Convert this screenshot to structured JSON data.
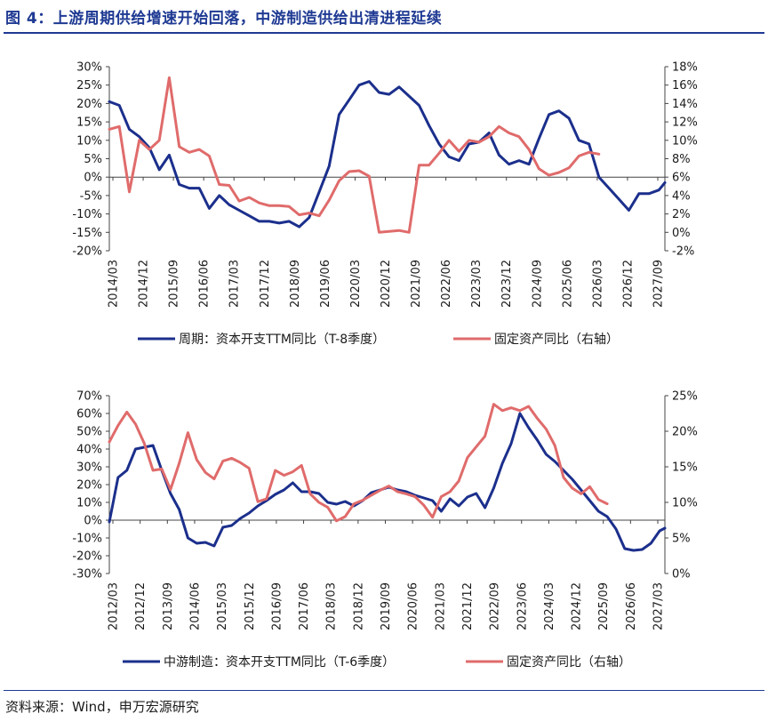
{
  "figure_title": "图 4：上游周期供给增速开始回落，中游制造供给出清进程延续",
  "source": "资料来源：Wind，申万宏源研究",
  "colors": {
    "navy": "#1b2f8c",
    "pink": "#e06b6b",
    "title": "#1f3a93"
  },
  "chart_data": [
    {
      "type": "line",
      "id": "upstream",
      "x_labels": [
        "2014/03",
        "2014/12",
        "2015/09",
        "2016/06",
        "2017/03",
        "2017/12",
        "2018/09",
        "2019/06",
        "2020/03",
        "2020/12",
        "2021/09",
        "2022/06",
        "2023/03",
        "2023/12",
        "2024/09",
        "2025/06",
        "2026/03",
        "2026/12",
        "2027/09"
      ],
      "x_range": [
        2014.0,
        2027.9
      ],
      "left_axis": {
        "ticks": [
          "30%",
          "25%",
          "20%",
          "15%",
          "10%",
          "5%",
          "0%",
          "-5%",
          "-10%",
          "-15%",
          "-20%"
        ],
        "min": -20,
        "max": 30
      },
      "right_axis": {
        "ticks": [
          "18%",
          "16%",
          "14%",
          "12%",
          "10%",
          "8%",
          "6%",
          "4%",
          "2%",
          "0%",
          "-2%"
        ],
        "min": -2,
        "max": 18
      },
      "series": [
        {
          "name": "周期：资本开支TTM同比（T-8季度）",
          "axis": "left",
          "color": "#1b2f8c",
          "points": [
            [
              2014.0,
              20.5
            ],
            [
              2014.25,
              19.5
            ],
            [
              2014.5,
              13
            ],
            [
              2014.75,
              11
            ],
            [
              2015.0,
              8
            ],
            [
              2015.25,
              2
            ],
            [
              2015.5,
              6
            ],
            [
              2015.75,
              -2
            ],
            [
              2016.0,
              -3
            ],
            [
              2016.25,
              -3
            ],
            [
              2016.5,
              -8.5
            ],
            [
              2016.75,
              -5
            ],
            [
              2017.0,
              -7.5
            ],
            [
              2017.25,
              -9
            ],
            [
              2017.5,
              -10.5
            ],
            [
              2017.75,
              -12
            ],
            [
              2018.0,
              -12
            ],
            [
              2018.25,
              -12.5
            ],
            [
              2018.5,
              -12
            ],
            [
              2018.75,
              -13.5
            ],
            [
              2019.0,
              -11
            ],
            [
              2019.25,
              -4
            ],
            [
              2019.5,
              3
            ],
            [
              2019.75,
              17
            ],
            [
              2020.0,
              21
            ],
            [
              2020.25,
              25
            ],
            [
              2020.5,
              26
            ],
            [
              2020.75,
              23
            ],
            [
              2021.0,
              22.5
            ],
            [
              2021.25,
              24.5
            ],
            [
              2021.5,
              22
            ],
            [
              2021.75,
              19.5
            ],
            [
              2022.0,
              14
            ],
            [
              2022.25,
              9
            ],
            [
              2022.5,
              5.5
            ],
            [
              2022.75,
              4.5
            ],
            [
              2023.0,
              9
            ],
            [
              2023.25,
              9.5
            ],
            [
              2023.5,
              12
            ],
            [
              2023.75,
              6
            ],
            [
              2024.0,
              3.5
            ],
            [
              2024.25,
              4.5
            ],
            [
              2024.5,
              3.5
            ],
            [
              2024.75,
              10.5
            ],
            [
              2025.0,
              17
            ],
            [
              2025.25,
              18
            ],
            [
              2025.5,
              16
            ],
            [
              2025.75,
              10
            ],
            [
              2026.0,
              9
            ],
            [
              2026.25,
              0
            ],
            [
              2026.5,
              -3
            ],
            [
              2026.75,
              -6
            ],
            [
              2027.0,
              -9
            ],
            [
              2027.25,
              -4.5
            ],
            [
              2027.5,
              -4.5
            ],
            [
              2027.75,
              -3.5
            ],
            [
              2027.9,
              -1.5
            ]
          ]
        },
        {
          "name": "固定资产同比（右轴）",
          "axis": "right",
          "color": "#e06b6b",
          "points": [
            [
              2014.0,
              11.2
            ],
            [
              2014.25,
              11.5
            ],
            [
              2014.5,
              4.4
            ],
            [
              2014.75,
              10
            ],
            [
              2015.0,
              9
            ],
            [
              2015.25,
              10
            ],
            [
              2015.5,
              16.8
            ],
            [
              2015.75,
              9.3
            ],
            [
              2016.0,
              8.7
            ],
            [
              2016.25,
              9
            ],
            [
              2016.5,
              8.3
            ],
            [
              2016.75,
              5.2
            ],
            [
              2017.0,
              5.1
            ],
            [
              2017.25,
              3.4
            ],
            [
              2017.5,
              3.8
            ],
            [
              2017.75,
              3.2
            ],
            [
              2018.0,
              2.9
            ],
            [
              2018.25,
              2.9
            ],
            [
              2018.5,
              2.8
            ],
            [
              2018.75,
              1.9
            ],
            [
              2019.0,
              2.1
            ],
            [
              2019.25,
              1.8
            ],
            [
              2019.5,
              3.5
            ],
            [
              2019.75,
              5.6
            ],
            [
              2020.0,
              6.6
            ],
            [
              2020.25,
              6.7
            ],
            [
              2020.5,
              6.1
            ],
            [
              2020.75,
              0
            ],
            [
              2021.0,
              0.1
            ],
            [
              2021.25,
              0.2
            ],
            [
              2021.5,
              0
            ],
            [
              2021.75,
              7.3
            ],
            [
              2022.0,
              7.3
            ],
            [
              2022.25,
              8.6
            ],
            [
              2022.5,
              10
            ],
            [
              2022.75,
              8.8
            ],
            [
              2023.0,
              10
            ],
            [
              2023.25,
              9.8
            ],
            [
              2023.5,
              10.4
            ],
            [
              2023.75,
              11.5
            ],
            [
              2024.0,
              10.8
            ],
            [
              2024.25,
              10.4
            ],
            [
              2024.5,
              9
            ],
            [
              2024.75,
              6.9
            ],
            [
              2025.0,
              6.2
            ],
            [
              2025.25,
              6.5
            ],
            [
              2025.5,
              7
            ],
            [
              2025.75,
              8.3
            ],
            [
              2026.0,
              8.7
            ],
            [
              2026.25,
              8.5
            ]
          ]
        }
      ]
    },
    {
      "type": "line",
      "id": "midstream",
      "x_labels": [
        "2012/03",
        "2012/12",
        "2013/09",
        "2014/06",
        "2015/03",
        "2015/12",
        "2016/09",
        "2017/06",
        "2018/03",
        "2018/12",
        "2019/09",
        "2020/06",
        "2021/03",
        "2021/12",
        "2022/09",
        "2023/06",
        "2024/03",
        "2024/12",
        "2025/09",
        "2026/06",
        "2027/03"
      ],
      "x_range": [
        2012.0,
        2027.9
      ],
      "left_axis": {
        "ticks": [
          "70%",
          "60%",
          "50%",
          "40%",
          "30%",
          "20%",
          "10%",
          "0%",
          "-10%",
          "-20%",
          "-30%"
        ],
        "min": -30,
        "max": 70
      },
      "right_axis": {
        "ticks": [
          "25%",
          "20%",
          "15%",
          "10%",
          "5%",
          "0%"
        ],
        "min": 0,
        "max": 25
      },
      "series": [
        {
          "name": "中游制造：资本开支TTM同比（T-6季度）",
          "axis": "left",
          "color": "#1b2f8c",
          "points": [
            [
              2012.0,
              -1
            ],
            [
              2012.25,
              24
            ],
            [
              2012.5,
              28
            ],
            [
              2012.75,
              40
            ],
            [
              2013.0,
              41
            ],
            [
              2013.25,
              42
            ],
            [
              2013.5,
              28
            ],
            [
              2013.75,
              15
            ],
            [
              2014.0,
              6
            ],
            [
              2014.25,
              -10
            ],
            [
              2014.5,
              -13
            ],
            [
              2014.75,
              -12.5
            ],
            [
              2015.0,
              -14.5
            ],
            [
              2015.25,
              -4
            ],
            [
              2015.5,
              -3
            ],
            [
              2015.75,
              1
            ],
            [
              2016.0,
              4
            ],
            [
              2016.25,
              8
            ],
            [
              2016.5,
              11
            ],
            [
              2016.75,
              14.5
            ],
            [
              2017.0,
              17
            ],
            [
              2017.25,
              21
            ],
            [
              2017.5,
              16
            ],
            [
              2017.75,
              16
            ],
            [
              2018.0,
              15
            ],
            [
              2018.25,
              10
            ],
            [
              2018.5,
              9
            ],
            [
              2018.75,
              10.5
            ],
            [
              2019.0,
              8
            ],
            [
              2019.25,
              11
            ],
            [
              2019.5,
              15.5
            ],
            [
              2019.75,
              17
            ],
            [
              2020.0,
              18.5
            ],
            [
              2020.25,
              17
            ],
            [
              2020.5,
              16
            ],
            [
              2020.75,
              14
            ],
            [
              2021.0,
              12.5
            ],
            [
              2021.25,
              11
            ],
            [
              2021.5,
              5
            ],
            [
              2021.75,
              12
            ],
            [
              2022.0,
              8
            ],
            [
              2022.25,
              13
            ],
            [
              2022.5,
              15
            ],
            [
              2022.75,
              7
            ],
            [
              2023.0,
              18
            ],
            [
              2023.25,
              32
            ],
            [
              2023.5,
              43
            ],
            [
              2023.75,
              60
            ],
            [
              2024.0,
              52
            ],
            [
              2024.25,
              45
            ],
            [
              2024.5,
              37
            ],
            [
              2024.75,
              33
            ],
            [
              2025.0,
              28
            ],
            [
              2025.25,
              23
            ],
            [
              2025.5,
              17
            ],
            [
              2025.75,
              11
            ],
            [
              2026.0,
              5
            ],
            [
              2026.25,
              2
            ],
            [
              2026.5,
              -5
            ],
            [
              2026.75,
              -16
            ],
            [
              2027.0,
              -17
            ],
            [
              2027.25,
              -16.5
            ],
            [
              2027.5,
              -13
            ],
            [
              2027.75,
              -6
            ],
            [
              2027.9,
              -4.5
            ]
          ]
        },
        {
          "name": "固定资产同比（右轴）",
          "axis": "right",
          "color": "#e06b6b",
          "points": [
            [
              2012.0,
              18.5
            ],
            [
              2012.25,
              20.8
            ],
            [
              2012.5,
              22.7
            ],
            [
              2012.75,
              21
            ],
            [
              2013.0,
              18.3
            ],
            [
              2013.25,
              14.5
            ],
            [
              2013.5,
              14.7
            ],
            [
              2013.75,
              11.8
            ],
            [
              2014.0,
              15.5
            ],
            [
              2014.25,
              19.8
            ],
            [
              2014.5,
              16
            ],
            [
              2014.75,
              14.2
            ],
            [
              2015.0,
              13.3
            ],
            [
              2015.25,
              15.8
            ],
            [
              2015.5,
              16.2
            ],
            [
              2015.75,
              15.6
            ],
            [
              2016.0,
              14.8
            ],
            [
              2016.25,
              10.1
            ],
            [
              2016.5,
              10.5
            ],
            [
              2016.75,
              14.5
            ],
            [
              2017.0,
              13.8
            ],
            [
              2017.25,
              14.3
            ],
            [
              2017.5,
              15.2
            ],
            [
              2017.75,
              11.2
            ],
            [
              2018.0,
              10
            ],
            [
              2018.25,
              9.3
            ],
            [
              2018.5,
              7.4
            ],
            [
              2018.75,
              8
            ],
            [
              2019.0,
              9.8
            ],
            [
              2019.25,
              10.3
            ],
            [
              2019.5,
              11
            ],
            [
              2019.75,
              11.7
            ],
            [
              2020.0,
              12.3
            ],
            [
              2020.25,
              11.5
            ],
            [
              2020.5,
              11.2
            ],
            [
              2020.75,
              10.8
            ],
            [
              2021.0,
              9.6
            ],
            [
              2021.25,
              7.9
            ],
            [
              2021.5,
              10.8
            ],
            [
              2021.75,
              11.5
            ],
            [
              2022.0,
              13
            ],
            [
              2022.25,
              16.3
            ],
            [
              2022.5,
              17.8
            ],
            [
              2022.75,
              19.3
            ],
            [
              2023.0,
              23.8
            ],
            [
              2023.25,
              22.9
            ],
            [
              2023.5,
              23.3
            ],
            [
              2023.75,
              22.9
            ],
            [
              2024.0,
              23.5
            ],
            [
              2024.25,
              21.8
            ],
            [
              2024.5,
              20.3
            ],
            [
              2024.75,
              18
            ],
            [
              2025.0,
              13.5
            ],
            [
              2025.25,
              12
            ],
            [
              2025.5,
              11.2
            ],
            [
              2025.75,
              12.2
            ],
            [
              2026.0,
              10.4
            ],
            [
              2026.25,
              9.8
            ]
          ]
        }
      ]
    }
  ]
}
